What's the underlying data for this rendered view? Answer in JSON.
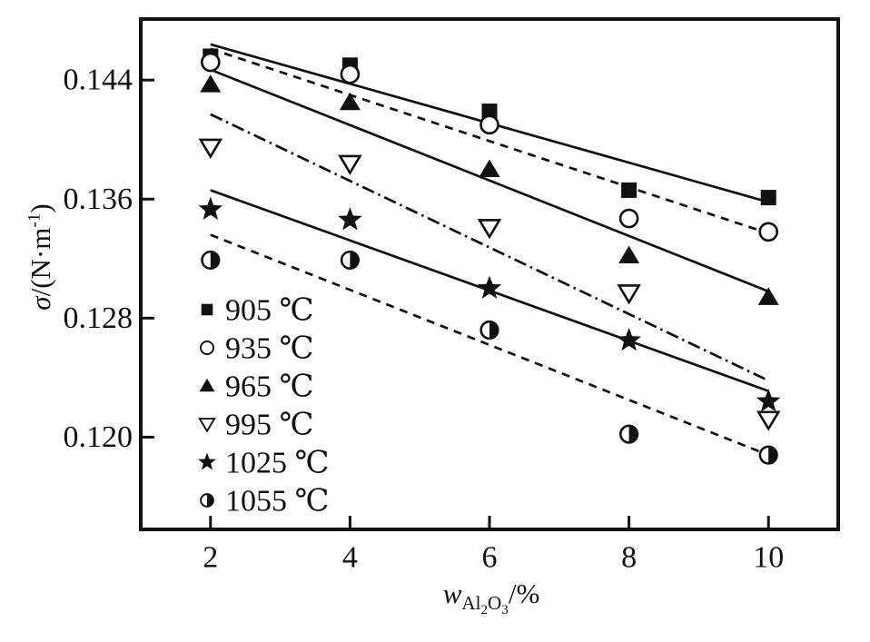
{
  "figure": {
    "background": "#ffffff",
    "ink_color": "#111111"
  },
  "y_axis": {
    "label_sigma": "σ",
    "label_mid": "/(N·m",
    "label_sup": "-1",
    "label_close": ")"
  },
  "x_axis": {
    "label_var": "w",
    "label_sub": "Al2O3",
    "label_suffix": "/%"
  },
  "chart_data": {
    "type": "scatter",
    "title": "",
    "xlabel": "w_{Al2O3}/%",
    "ylabel": "σ/(N·m⁻¹)",
    "x": [
      2,
      4,
      6,
      8,
      10
    ],
    "xlim": [
      1,
      11
    ],
    "ylim": [
      0.1138,
      0.1481
    ],
    "x_ticks": [
      2,
      4,
      6,
      8,
      10
    ],
    "x_tick_labels": [
      "2",
      "4",
      "6",
      "8",
      "10"
    ],
    "y_ticks": [
      0.12,
      0.128,
      0.136,
      0.144
    ],
    "y_tick_labels": [
      "0.120",
      "0.128",
      "0.136",
      "0.144"
    ],
    "grid": false,
    "legend_position": "inside-lower-left",
    "series": [
      {
        "name": "905 ℃",
        "marker": "square-filled",
        "linestyle": "solid",
        "values": [
          0.1456,
          0.145,
          0.1419,
          0.1366,
          0.1361
        ],
        "trend": {
          "x": [
            2,
            10
          ],
          "y": [
            0.1464,
            0.1358
          ]
        }
      },
      {
        "name": "935 ℃",
        "marker": "circle-open",
        "linestyle": "dashed",
        "values": [
          0.1452,
          0.1444,
          0.141,
          0.1347,
          0.1338
        ],
        "trend": {
          "x": [
            2,
            10
          ],
          "y": [
            0.1461,
            0.1337
          ]
        }
      },
      {
        "name": "965 ℃",
        "marker": "triangle-up-filled",
        "linestyle": "solid",
        "values": [
          0.1437,
          0.1425,
          0.138,
          0.1322,
          0.1294
        ],
        "trend": {
          "x": [
            2,
            10
          ],
          "y": [
            0.1447,
            0.1298
          ]
        }
      },
      {
        "name": "995 ℃",
        "marker": "triangle-down-open",
        "linestyle": "dashdot",
        "values": [
          0.1395,
          0.1384,
          0.1341,
          0.1297,
          0.1212
        ],
        "trend": {
          "x": [
            2,
            10
          ],
          "y": [
            0.1417,
            0.1238
          ]
        }
      },
      {
        "name": "1025 ℃",
        "marker": "star-filled",
        "linestyle": "solid",
        "values": [
          0.1353,
          0.1346,
          0.13,
          0.1265,
          0.1224
        ],
        "trend": {
          "x": [
            2,
            10
          ],
          "y": [
            0.1366,
            0.1231
          ]
        }
      },
      {
        "name": "1055 ℃",
        "marker": "circle-half-filled",
        "linestyle": "dashed",
        "values": [
          0.1319,
          0.1319,
          0.1272,
          0.1202,
          0.1188
        ],
        "trend": {
          "x": [
            2,
            10
          ],
          "y": [
            0.1336,
            0.1188
          ]
        }
      }
    ]
  }
}
